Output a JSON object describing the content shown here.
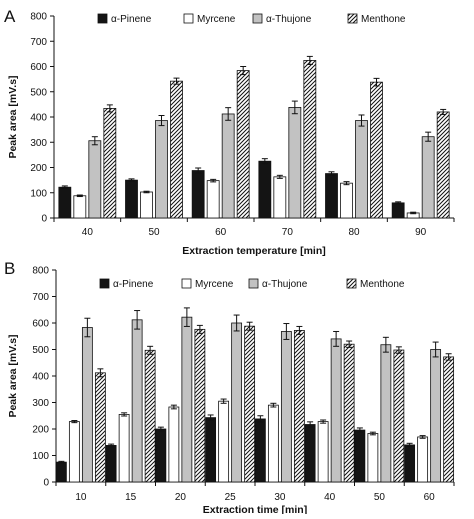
{
  "panel_letters": [
    "A",
    "B"
  ],
  "chart_data": [
    {
      "type": "bar",
      "panel": "A",
      "title": "",
      "xlabel": "Extraction temperature [min]",
      "ylabel": "Peak area [mV.s]",
      "ylim": [
        0,
        800
      ],
      "yticks": [
        0,
        100,
        200,
        300,
        400,
        500,
        600,
        700,
        800
      ],
      "categories": [
        "40",
        "50",
        "60",
        "70",
        "80",
        "90"
      ],
      "legend_position": "top",
      "grid": false,
      "series": [
        {
          "name": "α-Pinene",
          "values": [
            122,
            150,
            188,
            225,
            176,
            60
          ],
          "errors": [
            5,
            5,
            10,
            10,
            7,
            4
          ]
        },
        {
          "name": "Myrcene",
          "values": [
            88,
            103,
            148,
            163,
            138,
            20
          ],
          "errors": [
            3,
            3,
            5,
            6,
            6,
            3
          ]
        },
        {
          "name": "α-Thujone",
          "values": [
            306,
            386,
            412,
            438,
            386,
            322
          ],
          "errors": [
            16,
            20,
            25,
            25,
            22,
            18
          ]
        },
        {
          "name": "Menthone",
          "values": [
            434,
            542,
            584,
            624,
            538,
            420
          ],
          "errors": [
            14,
            12,
            16,
            16,
            15,
            10
          ]
        }
      ]
    },
    {
      "type": "bar",
      "panel": "B",
      "title": "",
      "xlabel": "Extraction time [min]",
      "ylabel": "Peak area [mV.s]",
      "ylim": [
        0,
        800
      ],
      "yticks": [
        0,
        100,
        200,
        300,
        400,
        500,
        600,
        700,
        800
      ],
      "categories": [
        "10",
        "15",
        "20",
        "25",
        "30",
        "40",
        "50",
        "60"
      ],
      "legend_position": "top",
      "grid": false,
      "series": [
        {
          "name": "α-Pinene",
          "values": [
            75,
            138,
            200,
            243,
            238,
            217,
            196,
            140
          ],
          "errors": [
            3,
            5,
            7,
            10,
            12,
            10,
            8,
            6
          ]
        },
        {
          "name": "Myrcene",
          "values": [
            228,
            255,
            283,
            305,
            290,
            228,
            183,
            170
          ],
          "errors": [
            4,
            6,
            7,
            8,
            7,
            6,
            5,
            5
          ]
        },
        {
          "name": "α-Thujone",
          "values": [
            583,
            612,
            622,
            600,
            568,
            540,
            518,
            500
          ],
          "errors": [
            35,
            35,
            35,
            30,
            30,
            28,
            28,
            28
          ]
        },
        {
          "name": "Menthone",
          "values": [
            412,
            497,
            576,
            588,
            572,
            520,
            498,
            472
          ],
          "errors": [
            15,
            15,
            15,
            15,
            15,
            12,
            12,
            12
          ]
        }
      ]
    }
  ],
  "series_styles": [
    {
      "fill": "#141414",
      "pattern": "solid"
    },
    {
      "fill": "#ffffff",
      "pattern": "solid"
    },
    {
      "fill": "#c2c2c2",
      "pattern": "solid"
    },
    {
      "fill": "#ffffff",
      "pattern": "diagonal-hatch"
    }
  ]
}
